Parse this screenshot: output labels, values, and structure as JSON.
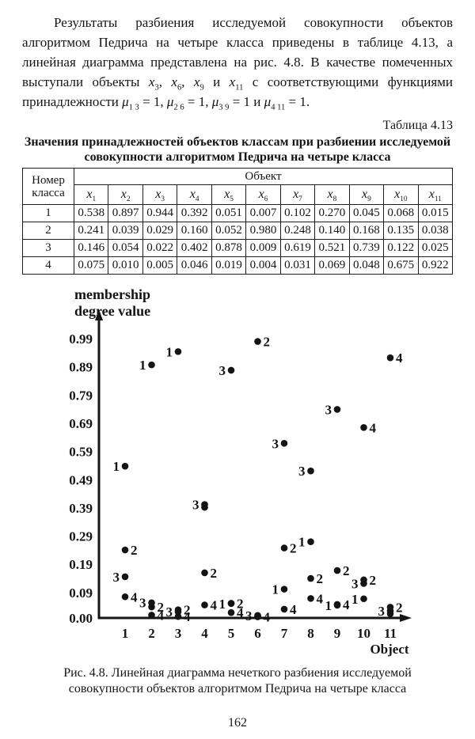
{
  "intro_paragraph": {
    "segments": [
      {
        "text": "Результаты разбиения исследуемой совокупности объектов алгоритмом Педрича на четыре класса приведены в таблице 4.13, а линейная диаграмма представлена на рис. 4.8. В качестве помеченных выступали объекты "
      },
      {
        "base": "x",
        "sub": "3"
      },
      {
        "text": ", "
      },
      {
        "base": "x",
        "sub": "6"
      },
      {
        "text": ", "
      },
      {
        "base": "x",
        "sub": "9"
      },
      {
        "text": " и "
      },
      {
        "base": "x",
        "sub": "11"
      },
      {
        "text": " с соответствующими функциями принадлежности "
      },
      {
        "base": "μ",
        "sub": "1 3"
      },
      {
        "text": " = 1, "
      },
      {
        "base": "μ",
        "sub": "2 6"
      },
      {
        "text": " = 1, "
      },
      {
        "base": "μ",
        "sub": "3 9"
      },
      {
        "text": " = 1 и "
      },
      {
        "base": "μ",
        "sub": "4 11"
      },
      {
        "text": " = 1."
      }
    ]
  },
  "table_section": {
    "label": "Таблица 4.13",
    "title": "Значения принадлежностей объектов классам при разбиении исследуемой совокупности алгоритмом Педрича на четыре класса",
    "corner_header": "Номер класса",
    "group_header": "Объект",
    "columns": [
      {
        "base": "x",
        "sub": "1"
      },
      {
        "base": "x",
        "sub": "2"
      },
      {
        "base": "x",
        "sub": "3"
      },
      {
        "base": "x",
        "sub": "4"
      },
      {
        "base": "x",
        "sub": "5"
      },
      {
        "base": "x",
        "sub": "6"
      },
      {
        "base": "x",
        "sub": "7"
      },
      {
        "base": "x",
        "sub": "8"
      },
      {
        "base": "x",
        "sub": "9"
      },
      {
        "base": "x",
        "sub": "10"
      },
      {
        "base": "x",
        "sub": "11"
      }
    ],
    "rows": [
      {
        "class": "1",
        "values": [
          "0.538",
          "0.897",
          "0.944",
          "0.392",
          "0.051",
          "0.007",
          "0.102",
          "0.270",
          "0.045",
          "0.068",
          "0.015"
        ]
      },
      {
        "class": "2",
        "values": [
          "0.241",
          "0.039",
          "0.029",
          "0.160",
          "0.052",
          "0.980",
          "0.248",
          "0.140",
          "0.168",
          "0.135",
          "0.038"
        ]
      },
      {
        "class": "3",
        "values": [
          "0.146",
          "0.054",
          "0.022",
          "0.402",
          "0.878",
          "0.009",
          "0.619",
          "0.521",
          "0.739",
          "0.122",
          "0.025"
        ]
      },
      {
        "class": "4",
        "values": [
          "0.075",
          "0.010",
          "0.005",
          "0.046",
          "0.019",
          "0.004",
          "0.031",
          "0.069",
          "0.048",
          "0.675",
          "0.922"
        ]
      }
    ]
  },
  "chart_data": {
    "type": "scatter",
    "axis_title_lines": [
      "membership",
      "degree value"
    ],
    "ylabel": "membership degree value",
    "xlabel": "Object",
    "x_categories": [
      "1",
      "2",
      "3",
      "4",
      "5",
      "6",
      "7",
      "8",
      "9",
      "10",
      "11"
    ],
    "y_tick_labels": [
      "0.00",
      "0.09",
      "0.19",
      "0.29",
      "0.39",
      "0.49",
      "0.59",
      "0.69",
      "0.79",
      "0.89",
      "0.99"
    ],
    "ylim": [
      0,
      1.02
    ],
    "grid": false,
    "legend": "none",
    "marker_color": "#141414",
    "series": [
      {
        "name": "class 1",
        "marker_label": "1",
        "values": [
          0.538,
          0.897,
          0.944,
          0.392,
          0.051,
          0.007,
          0.102,
          0.27,
          0.045,
          0.068,
          0.015
        ],
        "label_sides": [
          "L",
          "L",
          "L",
          "-",
          "L",
          "-",
          "L",
          "L",
          "L",
          "L",
          "-"
        ]
      },
      {
        "name": "class 2",
        "marker_label": "2",
        "values": [
          0.241,
          0.039,
          0.029,
          0.16,
          0.052,
          0.98,
          0.248,
          0.14,
          0.168,
          0.135,
          0.038
        ],
        "label_sides": [
          "R",
          "R",
          "R",
          "R",
          "R",
          "R",
          "R",
          "R",
          "R",
          "R",
          "R"
        ]
      },
      {
        "name": "class 3",
        "marker_label": "3",
        "values": [
          0.146,
          0.054,
          0.022,
          0.402,
          0.878,
          0.009,
          0.619,
          0.521,
          0.739,
          0.122,
          0.025
        ],
        "label_sides": [
          "L",
          "L",
          "L",
          "L",
          "L",
          "L",
          "L",
          "L",
          "L",
          "L",
          "L"
        ]
      },
      {
        "name": "class 4",
        "marker_label": "4",
        "values": [
          0.075,
          0.01,
          0.005,
          0.046,
          0.019,
          0.004,
          0.031,
          0.069,
          0.048,
          0.675,
          0.922
        ],
        "label_sides": [
          "R",
          "R",
          "R",
          "R",
          "R",
          "R",
          "R",
          "R",
          "R",
          "R",
          "R"
        ]
      }
    ]
  },
  "figure_caption": "Рис. 4.8. Линейная диаграмма нечеткого разбиения исследуемой совокупности объектов алгоритмом Педрича на четыре класса",
  "page_number": "162"
}
